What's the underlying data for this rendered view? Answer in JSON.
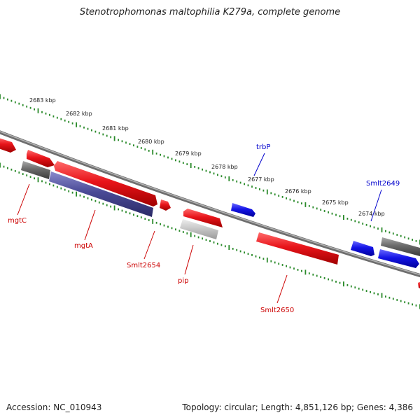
{
  "title": "Stenotrophomonas maltophilia K279a, complete genome",
  "footer": {
    "accession": "Accession: NC_010943",
    "topology": "Topology: circular; Length: 4,851,126 bp; Genes: 4,386"
  },
  "colors": {
    "forward_gene": "#e8141a",
    "reverse_gene": "#e8141a",
    "blue_gene": "#1414e6",
    "grey_gene": "#707070",
    "light_grey_gene": "#c8c8c8",
    "purple_gene": "#4a4a96",
    "backbone": "#8a8a8a",
    "tick": "#2a8a2a",
    "label_red": "#cc0000",
    "label_blue": "#0000cc"
  },
  "scale_labels": [
    "2683 kbp",
    "2682 kbp",
    "2681 kbp",
    "2680 kbp",
    "2679 kbp",
    "2678 kbp",
    "2677 kbp",
    "2676 kbp",
    "2675 kbp",
    "2674 kbp"
  ],
  "gene_labels": [
    {
      "name": "mgtC",
      "color": "red"
    },
    {
      "name": "mgtA",
      "color": "red"
    },
    {
      "name": "Smlt2654",
      "color": "red"
    },
    {
      "name": "pip",
      "color": "red"
    },
    {
      "name": "Smlt2650",
      "color": "red"
    },
    {
      "name": "trbP",
      "color": "blue"
    },
    {
      "name": "Smlt2649",
      "color": "blue"
    }
  ]
}
